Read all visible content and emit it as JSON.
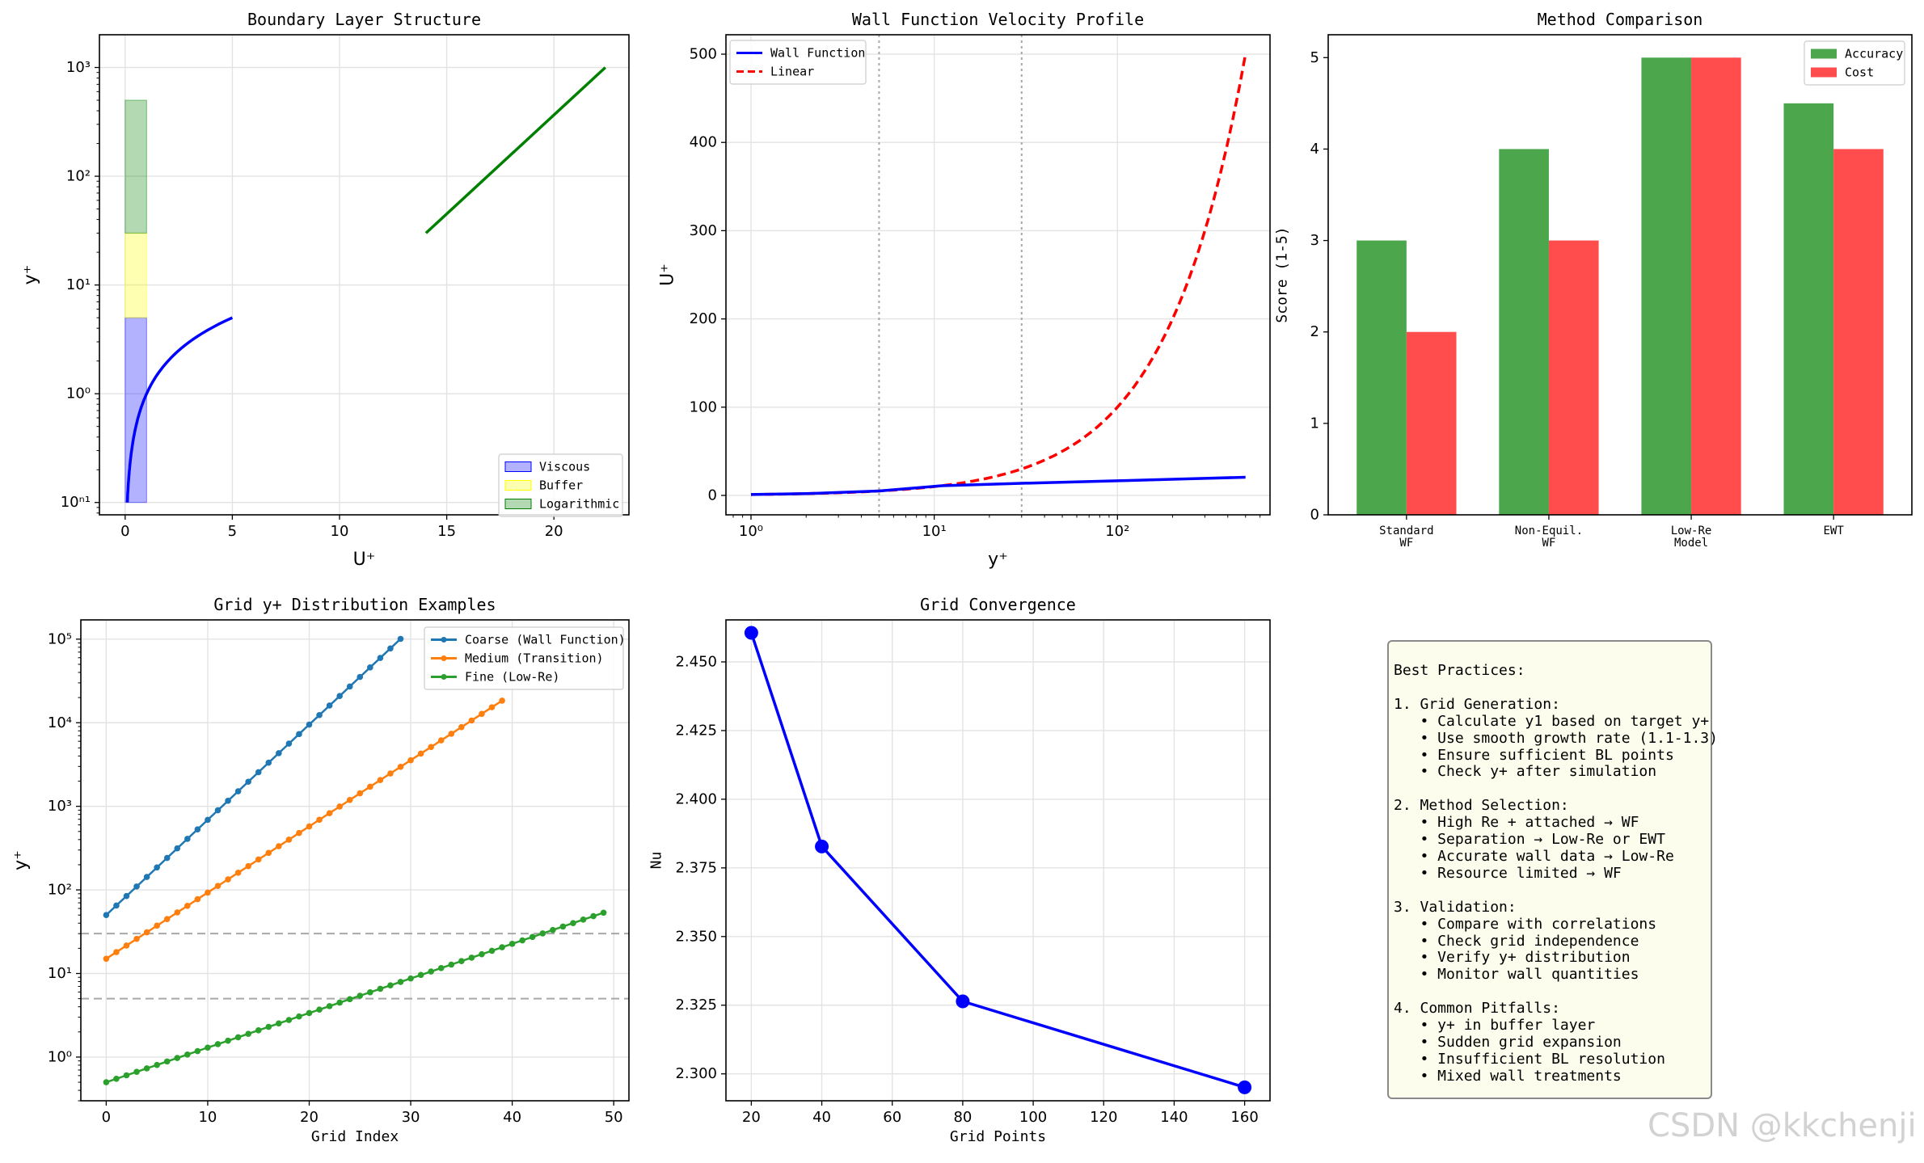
{
  "chart_data": [
    {
      "type": "line",
      "title": "Boundary Layer Structure",
      "xlabel": "U⁺",
      "ylabel": "y⁺",
      "yscale": "log",
      "xlim": [
        -1.2,
        23.5
      ],
      "ylim": [
        0.077,
        2000
      ],
      "xticks": [
        0,
        5,
        10,
        15,
        20
      ],
      "yticks": [
        0.1,
        1,
        10,
        100,
        1000
      ],
      "ytick_labels": [
        "10ⁿ¹",
        "10⁰",
        "10¹",
        "10²",
        "10³"
      ],
      "grid": true,
      "legend_position": "lower right",
      "regions": [
        {
          "name": "Viscous",
          "x": [
            0,
            1
          ],
          "y": [
            0.1,
            5
          ],
          "color": "#0000ff",
          "alpha": 0.3
        },
        {
          "name": "Buffer",
          "x": [
            0,
            1
          ],
          "y": [
            5,
            30
          ],
          "color": "#ffff00",
          "alpha": 0.3
        },
        {
          "name": "Logarithmic",
          "x": [
            0,
            1
          ],
          "y": [
            30,
            500
          ],
          "color": "#008000",
          "alpha": 0.3
        }
      ],
      "series": [
        {
          "color": "#0000ff",
          "x": [
            0.1,
            0.2,
            0.3,
            0.5,
            0.7,
            1.0,
            1.5,
            2.0,
            3.0,
            4.0,
            5.0
          ],
          "y": [
            0.1,
            0.2,
            0.3,
            0.5,
            0.7,
            1.0,
            1.5,
            2.0,
            3.0,
            4.0,
            5.0
          ]
        },
        {
          "color": "#008000",
          "x": [
            14.03,
            22.4
          ],
          "y": [
            30,
            1000
          ]
        }
      ]
    },
    {
      "type": "line",
      "title": "Wall Function Velocity Profile",
      "xlabel": "y⁺",
      "ylabel": "U⁺",
      "xscale": "log",
      "xlim": [
        0.73,
        680
      ],
      "ylim": [
        -22,
        522
      ],
      "xticks": [
        1,
        10,
        100
      ],
      "xtick_labels": [
        "10⁰",
        "10¹",
        "10²"
      ],
      "yticks": [
        0,
        100,
        200,
        300,
        400,
        500
      ],
      "grid": true,
      "legend_position": "upper left",
      "vlines": [
        5,
        30
      ],
      "series": [
        {
          "name": "Wall Function",
          "color": "#0000ff",
          "style": "solid",
          "x": [
            1,
            2,
            5,
            11,
            30,
            100,
            300,
            500
          ],
          "y": [
            1,
            2,
            5,
            11,
            13.7,
            16.6,
            19.3,
            20.6
          ]
        },
        {
          "name": "Linear",
          "color": "#ff0000",
          "style": "dashed",
          "x": [
            1,
            2,
            5,
            10,
            30,
            60,
            100,
            200,
            300,
            400,
            500
          ],
          "y": [
            1,
            2,
            5,
            10,
            30,
            60,
            100,
            200,
            300,
            400,
            500
          ]
        }
      ]
    },
    {
      "type": "bar",
      "title": "Method Comparison",
      "ylabel": "Score (1-5)",
      "ylim": [
        0,
        5.25
      ],
      "yticks": [
        0,
        1,
        2,
        3,
        4,
        5
      ],
      "categories": [
        [
          "Standard",
          "WF"
        ],
        [
          "Non-Equil.",
          "WF"
        ],
        [
          "Low-Re",
          "Model"
        ],
        [
          "EWT"
        ]
      ],
      "legend_position": "upper right",
      "series": [
        {
          "name": "Accuracy",
          "color": "#4ca64c",
          "values": [
            3,
            4,
            5,
            4.5
          ]
        },
        {
          "name": "Cost",
          "color": "#ff4c4c",
          "values": [
            2,
            3,
            5,
            4
          ]
        }
      ]
    },
    {
      "type": "line",
      "title": "Grid y+ Distribution Examples",
      "xlabel": "Grid Index",
      "ylabel": "y⁺",
      "yscale": "log",
      "xlim": [
        -2.5,
        51.5
      ],
      "ylim": [
        0.3,
        170000
      ],
      "xticks": [
        0,
        10,
        20,
        30,
        40,
        50
      ],
      "yticks": [
        1,
        10,
        100,
        1000,
        10000,
        100000
      ],
      "ytick_labels": [
        "10⁰",
        "10¹",
        "10²",
        "10³",
        "10⁴",
        "10⁵"
      ],
      "hlines": [
        5,
        30
      ],
      "grid": true,
      "legend_position": "upper right",
      "series": [
        {
          "name": "Coarse (Wall Function)",
          "color": "#1f77b4",
          "marker": "o",
          "start": 50,
          "ratio": 1.3,
          "count": 30
        },
        {
          "name": "Medium (Transition)",
          "color": "#ff7f0e",
          "marker": "o",
          "start": 15,
          "ratio": 1.2,
          "count": 40
        },
        {
          "name": "Fine (Low-Re)",
          "color": "#2ca02c",
          "marker": "o",
          "start": 0.5,
          "ratio": 1.1,
          "count": 50
        }
      ]
    },
    {
      "type": "line",
      "title": "Grid Convergence",
      "xlabel": "Grid Points",
      "ylabel": "Nu",
      "xlim": [
        12.8,
        167.2
      ],
      "ylim": [
        2.2902,
        2.4653
      ],
      "xticks": [
        20,
        40,
        60,
        80,
        100,
        120,
        140,
        160
      ],
      "yticks": [
        2.3,
        2.325,
        2.35,
        2.375,
        2.4,
        2.425,
        2.45
      ],
      "ytick_labels": [
        "2.300",
        "2.325",
        "2.350",
        "2.375",
        "2.400",
        "2.425",
        "2.450"
      ],
      "grid": true,
      "series": [
        {
          "color": "#0000ff",
          "marker": "o",
          "x": [
            20,
            40,
            80,
            160
          ],
          "y": [
            2.4606,
            2.3828,
            2.3264,
            2.2951
          ]
        }
      ]
    }
  ],
  "notes": {
    "text": "Best Practices:\n\n1. Grid Generation:\n   • Calculate y1 based on target y+\n   • Use smooth growth rate (1.1-1.3)\n   • Ensure sufficient BL points\n   • Check y+ after simulation\n\n2. Method Selection:\n   • High Re + attached → WF\n   • Separation → Low-Re or EWT\n   • Accurate wall data → Low-Re\n   • Resource limited → WF\n\n3. Validation:\n   • Compare with correlations\n   • Check grid independence\n   • Verify y+ distribution\n   • Monitor wall quantities\n\n4. Common Pitfalls:\n   • y+ in buffer layer\n   • Sudden grid expansion\n   • Insufficient BL resolution\n   • Mixed wall treatments"
  },
  "watermark": "CSDN @kkchenji"
}
